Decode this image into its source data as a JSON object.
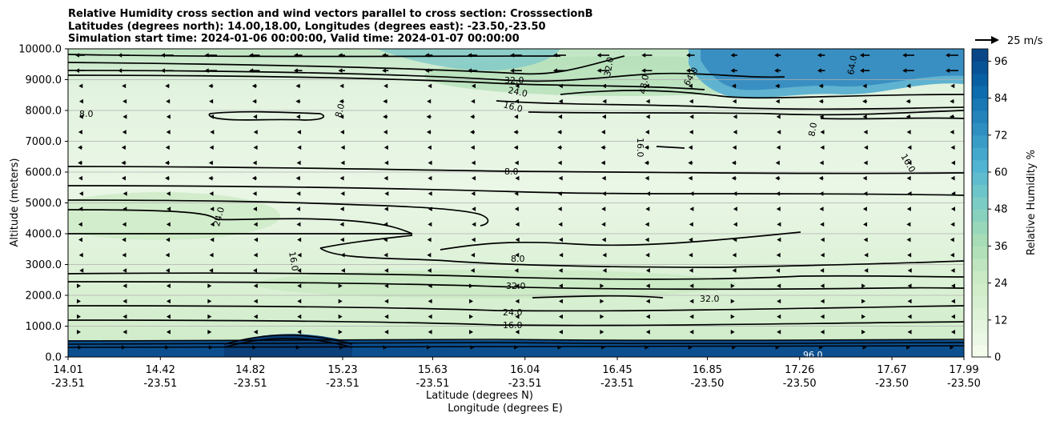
{
  "chart_data": {
    "type": "contour",
    "title_lines": [
      "Relative Humidity cross section and wind vectors parallel to cross section: CrosssectionB",
      "Latitudes (degrees north): 14.00,18.00, Longitudes (degrees east): -23.50,-23.50",
      "Simulation start time: 2024-01-06 00:00:00, Valid time: 2024-01-07 00:00:00"
    ],
    "ylabel": "Altitude (meters)",
    "xlabel_lines": [
      "Latitude (degrees N)",
      "Longitude (degrees E)"
    ],
    "ylim": [
      0,
      10000
    ],
    "y_ticks": [
      "0.0",
      "1000.0",
      "2000.0",
      "3000.0",
      "4000.0",
      "5000.0",
      "6000.0",
      "7000.0",
      "8000.0",
      "9000.0",
      "10000.0"
    ],
    "x_ticks": [
      {
        "lat": "14.01",
        "lon": "-23.51"
      },
      {
        "lat": "14.42",
        "lon": "-23.51"
      },
      {
        "lat": "14.82",
        "lon": "-23.51"
      },
      {
        "lat": "15.23",
        "lon": "-23.51"
      },
      {
        "lat": "15.63",
        "lon": "-23.51"
      },
      {
        "lat": "16.04",
        "lon": "-23.51"
      },
      {
        "lat": "16.45",
        "lon": "-23.51"
      },
      {
        "lat": "16.85",
        "lon": "-23.50"
      },
      {
        "lat": "17.26",
        "lon": "-23.50"
      },
      {
        "lat": "17.67",
        "lon": "-23.50"
      },
      {
        "lat": "17.99",
        "lon": "-23.50"
      }
    ],
    "colorbar": {
      "label": "Relative Humidity %",
      "ticks": [
        "0",
        "12",
        "24",
        "36",
        "48",
        "60",
        "72",
        "84",
        "96"
      ],
      "levels_min": 0,
      "levels_max": 100,
      "levels_step": 4,
      "colormap": "GnBu"
    },
    "quiver_key": "25 m/s",
    "contour_lines": [
      {
        "level": 8,
        "altitude_m": 6150
      },
      {
        "level": 8,
        "altitude_m": 3150
      },
      {
        "level": 16,
        "altitude_m": 1050
      },
      {
        "level": 24,
        "altitude_m": 1450
      },
      {
        "level": 32,
        "altitude_m": 2150
      },
      {
        "level": 32,
        "altitude_m": 2450
      },
      {
        "level": 24,
        "altitude_m": 4000
      },
      {
        "level": 16,
        "altitude_m": 8300
      },
      {
        "level": 24,
        "altitude_m": 8700
      },
      {
        "level": 32,
        "altitude_m": 9150
      }
    ],
    "contour_labels": [
      "8.0",
      "8.0",
      "8.0",
      "8.0",
      "8.0",
      "16.0",
      "16.0",
      "16.0",
      "16.0",
      "16.0",
      "24.0",
      "24.0",
      "24.0",
      "32.0",
      "32.0",
      "32.0",
      "32.0",
      "48.0",
      "64.0",
      "64.0",
      "96.0"
    ]
  }
}
